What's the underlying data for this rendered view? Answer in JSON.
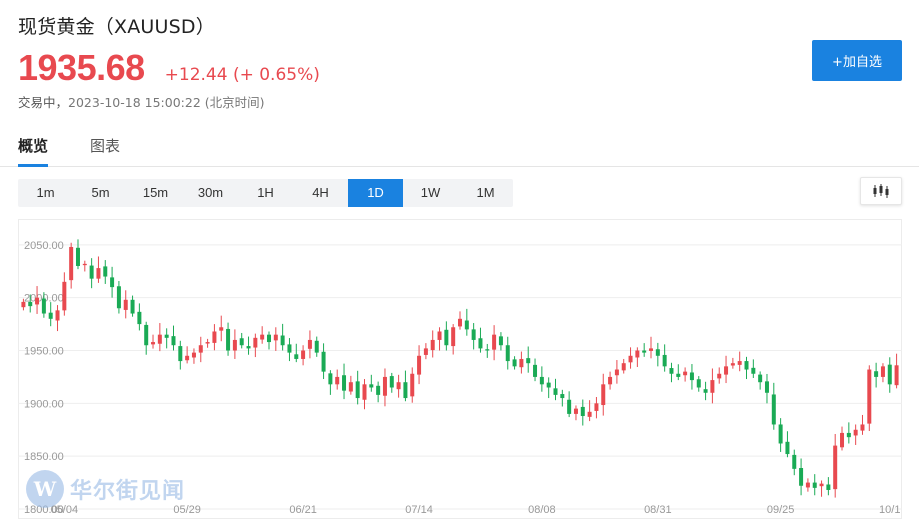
{
  "header": {
    "title": "现货黄金（XAUUSD）",
    "price": "1935.68",
    "change": "+12.44 (+ 0.65%)",
    "status_label": "交易中，",
    "timestamp": "2023-10-18 15:00:22 (北京时间)",
    "add_button": "+加自选"
  },
  "tabs": [
    {
      "label": "概览",
      "active": true
    },
    {
      "label": "图表",
      "active": false
    }
  ],
  "intervals": [
    {
      "label": "1m",
      "active": false
    },
    {
      "label": "5m",
      "active": false
    },
    {
      "label": "15m",
      "active": false
    },
    {
      "label": "30m",
      "active": false
    },
    {
      "label": "1H",
      "active": false
    },
    {
      "label": "4H",
      "active": false
    },
    {
      "label": "1D",
      "active": true
    },
    {
      "label": "1W",
      "active": false
    },
    {
      "label": "1M",
      "active": false
    }
  ],
  "watermark": {
    "logo_letter": "W",
    "text": "华尔街见闻"
  },
  "colors": {
    "up": "#e8494f",
    "down": "#1aaa55",
    "accent": "#1a82e0",
    "grid": "#eeeeee",
    "axis_text": "#999999"
  },
  "icons": {
    "chart_type": "candlestick-icon"
  },
  "chart_data": {
    "type": "candlestick",
    "ylim": [
      1800,
      2065
    ],
    "y_ticks": [
      "2050.00",
      "2000.00",
      "1950.00",
      "1900.00",
      "1850.00",
      "1800.00"
    ],
    "y_tick_values": [
      2050,
      2000,
      1950,
      1900,
      1850,
      1800
    ],
    "x_ticks": [
      "05/04",
      "05/29",
      "06/21",
      "07/14",
      "08/08",
      "08/31",
      "09/25",
      "10/1"
    ],
    "x_tick_index": [
      6,
      24,
      41,
      58,
      76,
      93,
      111,
      127
    ],
    "closes": [
      1996,
      1992,
      2000,
      1985,
      1980,
      1988,
      2015,
      2048,
      2030,
      2032,
      2018,
      2028,
      2020,
      2010,
      1990,
      1998,
      1985,
      1975,
      1955,
      1958,
      1965,
      1962,
      1955,
      1940,
      1945,
      1948,
      1955,
      1958,
      1968,
      1972,
      1950,
      1960,
      1955,
      1952,
      1962,
      1965,
      1958,
      1965,
      1955,
      1948,
      1942,
      1950,
      1960,
      1948,
      1930,
      1918,
      1925,
      1912,
      1920,
      1905,
      1918,
      1915,
      1908,
      1925,
      1915,
      1920,
      1905,
      1928,
      1945,
      1952,
      1960,
      1968,
      1955,
      1972,
      1980,
      1970,
      1960,
      1952,
      1950,
      1965,
      1955,
      1940,
      1935,
      1942,
      1938,
      1925,
      1918,
      1915,
      1908,
      1905,
      1890,
      1895,
      1888,
      1892,
      1900,
      1918,
      1925,
      1932,
      1938,
      1945,
      1950,
      1948,
      1952,
      1945,
      1935,
      1928,
      1925,
      1930,
      1922,
      1915,
      1910,
      1922,
      1928,
      1935,
      1938,
      1940,
      1932,
      1928,
      1920,
      1910,
      1880,
      1862,
      1852,
      1838,
      1822,
      1825,
      1820,
      1824,
      1818,
      1860,
      1872,
      1868,
      1875,
      1880,
      1932,
      1925,
      1935,
      1918,
      1936
    ]
  }
}
